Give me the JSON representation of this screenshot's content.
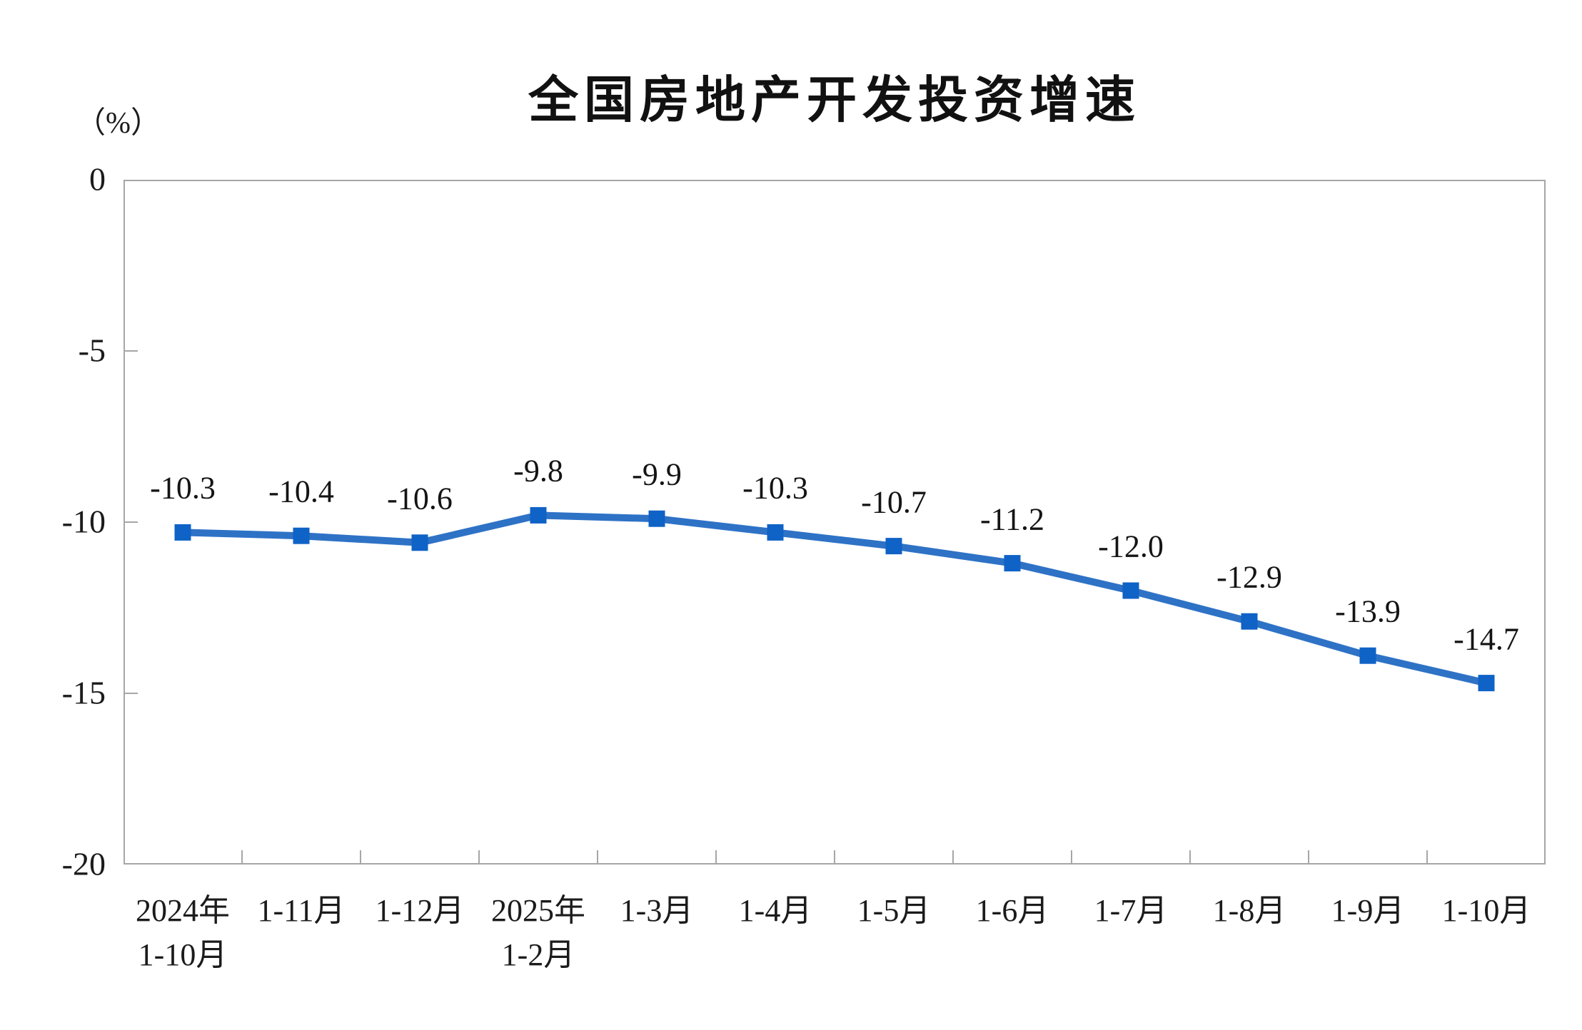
{
  "title": "全国房地产开发投资增速",
  "unit_label": "（%）",
  "colors": {
    "line": "#2e72c6",
    "marker": "#0f62c6",
    "axis": "#a6a6a6",
    "text": "#1b1b1b"
  },
  "chart_data": {
    "type": "line",
    "title": "全国房地产开发投资增速",
    "ylabel": "（%）",
    "xlabel": "",
    "ylim": [
      -20,
      0
    ],
    "yticks": [
      0,
      -5,
      -10,
      -15,
      -20
    ],
    "grid": false,
    "legend": null,
    "marker_shape": "square",
    "categories": [
      "2024年\n1-10月",
      "1-11月",
      "1-12月",
      "2025年\n1-2月",
      "1-3月",
      "1-4月",
      "1-5月",
      "1-6月",
      "1-7月",
      "1-8月",
      "1-9月",
      "1-10月"
    ],
    "values": [
      -10.3,
      -10.4,
      -10.6,
      -9.8,
      -9.9,
      -10.3,
      -10.7,
      -11.2,
      -12.0,
      -12.9,
      -13.9,
      -14.7
    ],
    "data_labels": [
      "-10.3",
      "-10.4",
      "-10.6",
      "-9.8",
      "-9.9",
      "-10.3",
      "-10.7",
      "-11.2",
      "-12.0",
      "-12.9",
      "-13.9",
      "-14.7"
    ]
  }
}
